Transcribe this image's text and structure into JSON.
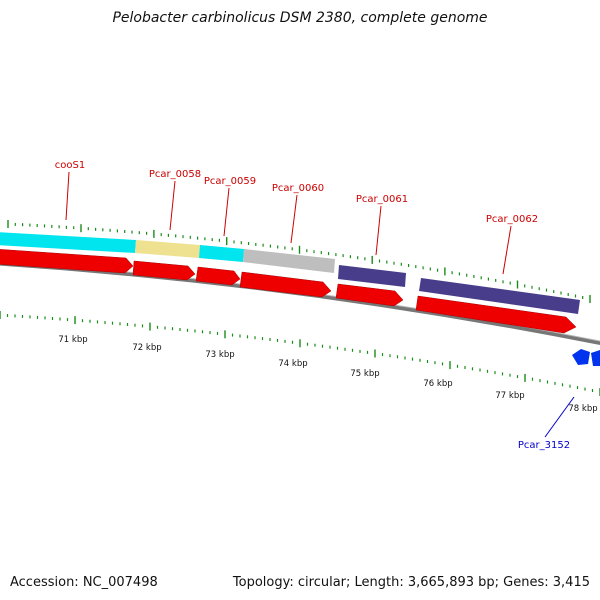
{
  "header": {
    "title": "Pelobacter carbinolicus DSM 2380, complete genome"
  },
  "footer": {
    "accession": "Accession: NC_007498",
    "summary": "Topology: circular; Length: 3,665,893 bp; Genes: 3,415"
  },
  "colors": {
    "forward_arrow": "#ee0000",
    "reverse_gene": "#0033ee",
    "backbone": "#888888",
    "tick": "#1a8c1a",
    "label_forward": "#cc0000",
    "label_reverse": "#0000cc",
    "cog_cyan": "#00e5ee",
    "cog_khaki": "#eee18f",
    "cog_grey": "#bebebe",
    "cog_slateblue": "#483d8b"
  },
  "genes": [
    {
      "label": "cooS1"
    },
    {
      "label": "Pcar_0058"
    },
    {
      "label": "Pcar_0059"
    },
    {
      "label": "Pcar_0060"
    },
    {
      "label": "Pcar_0061"
    },
    {
      "label": "Pcar_0062"
    },
    {
      "label": "Pcar_3152"
    }
  ],
  "scale_labels": [
    "71 kbp",
    "72 kbp",
    "73 kbp",
    "74 kbp",
    "75 kbp",
    "76 kbp",
    "77 kbp",
    "78 kbp"
  ]
}
